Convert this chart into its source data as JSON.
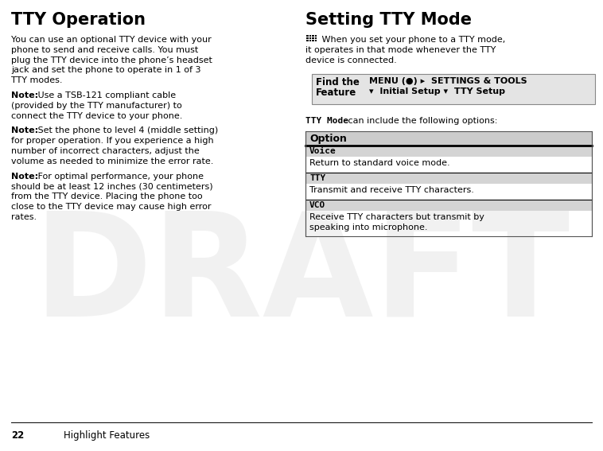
{
  "page_number": "22",
  "section_footer": "Highlight Features",
  "draft_watermark": "DRAFT",
  "left_title": "TTY Operation",
  "left_para0": "You can use an optional TTY device with your\nphone to send and receive calls. You must\nplug the TTY device into the phone’s headset\njack and set the phone to operate in 1 of 3\nTTY modes.",
  "left_note1_bold": "Note:",
  "left_note1_rest": " Use a TSB-121 compliant cable\n(provided by the TTY manufacturer) to\nconnect the TTY device to your phone.",
  "left_note2_bold": "Note:",
  "left_note2_rest": " Set the phone to level 4 (middle setting)\nfor proper operation. If you experience a high\nnumber of incorrect characters, adjust the\nvolume as needed to minimize the error rate.",
  "left_note3_bold": "Note:",
  "left_note3_rest": " For optimal performance, your phone\nshould be at least 12 inches (30 centimeters)\nfrom the TTY device. Placing the phone too\nclose to the TTY device may cause high error\nrates.",
  "right_title": "Setting TTY Mode",
  "right_intro_line1": " When you set your phone to a TTY mode,",
  "right_intro_line2": "it operates in that mode whenever the TTY",
  "right_intro_line3": "device is connected.",
  "find_the": "Find the",
  "feature": "Feature",
  "find_menu_line1": "MENU (●) ▸  SETTINGS & TOOLS",
  "find_menu_line2": "▾  Initial Setup ▾  TTY Setup",
  "tty_mode_prefix": "TTY Mode",
  "tty_mode_suffix": " can include the following options:",
  "table_header": "Option",
  "row1_label": "Voice",
  "row1_desc": "Return to standard voice mode.",
  "row2_label": "TTY",
  "row2_desc": "Transmit and receive TTY characters.",
  "row3_label": "VCO",
  "row3_desc_line1": "Receive TTY characters but transmit by",
  "row3_desc_line2": "speaking into microphone.",
  "bg_color": "#ffffff",
  "text_color": "#000000",
  "watermark_color": "#d0d0d0",
  "gray_label_bg": "#d4d4d4",
  "table_border_color": "#555555",
  "find_box_bg": "#e4e4e4"
}
